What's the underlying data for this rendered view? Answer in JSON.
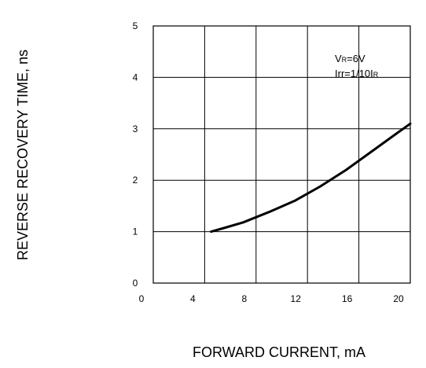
{
  "chart_data": {
    "type": "line",
    "xlabel": "FORWARD CURRENT, mA",
    "ylabel": "REVERSE RECOVERY TIME, ns",
    "xlim": [
      0,
      20
    ],
    "ylim": [
      0,
      5
    ],
    "xticks": [
      "0",
      "4",
      "8",
      "12",
      "16",
      "20"
    ],
    "yticks": [
      "0",
      "1",
      "2",
      "3",
      "4",
      "5"
    ],
    "grid": true,
    "series": [
      {
        "x": [
          4.5,
          5.5,
          7,
          9,
          11,
          13,
          15,
          17,
          19,
          20
        ],
        "values": [
          1.0,
          1.07,
          1.18,
          1.38,
          1.6,
          1.88,
          2.2,
          2.56,
          2.92,
          3.1
        ]
      }
    ],
    "annotations": {
      "vr": {
        "main": "V",
        "sub": "R",
        "rest": "=6V"
      },
      "irr": {
        "main": "Irr=1/10I",
        "sub": "R"
      }
    }
  }
}
